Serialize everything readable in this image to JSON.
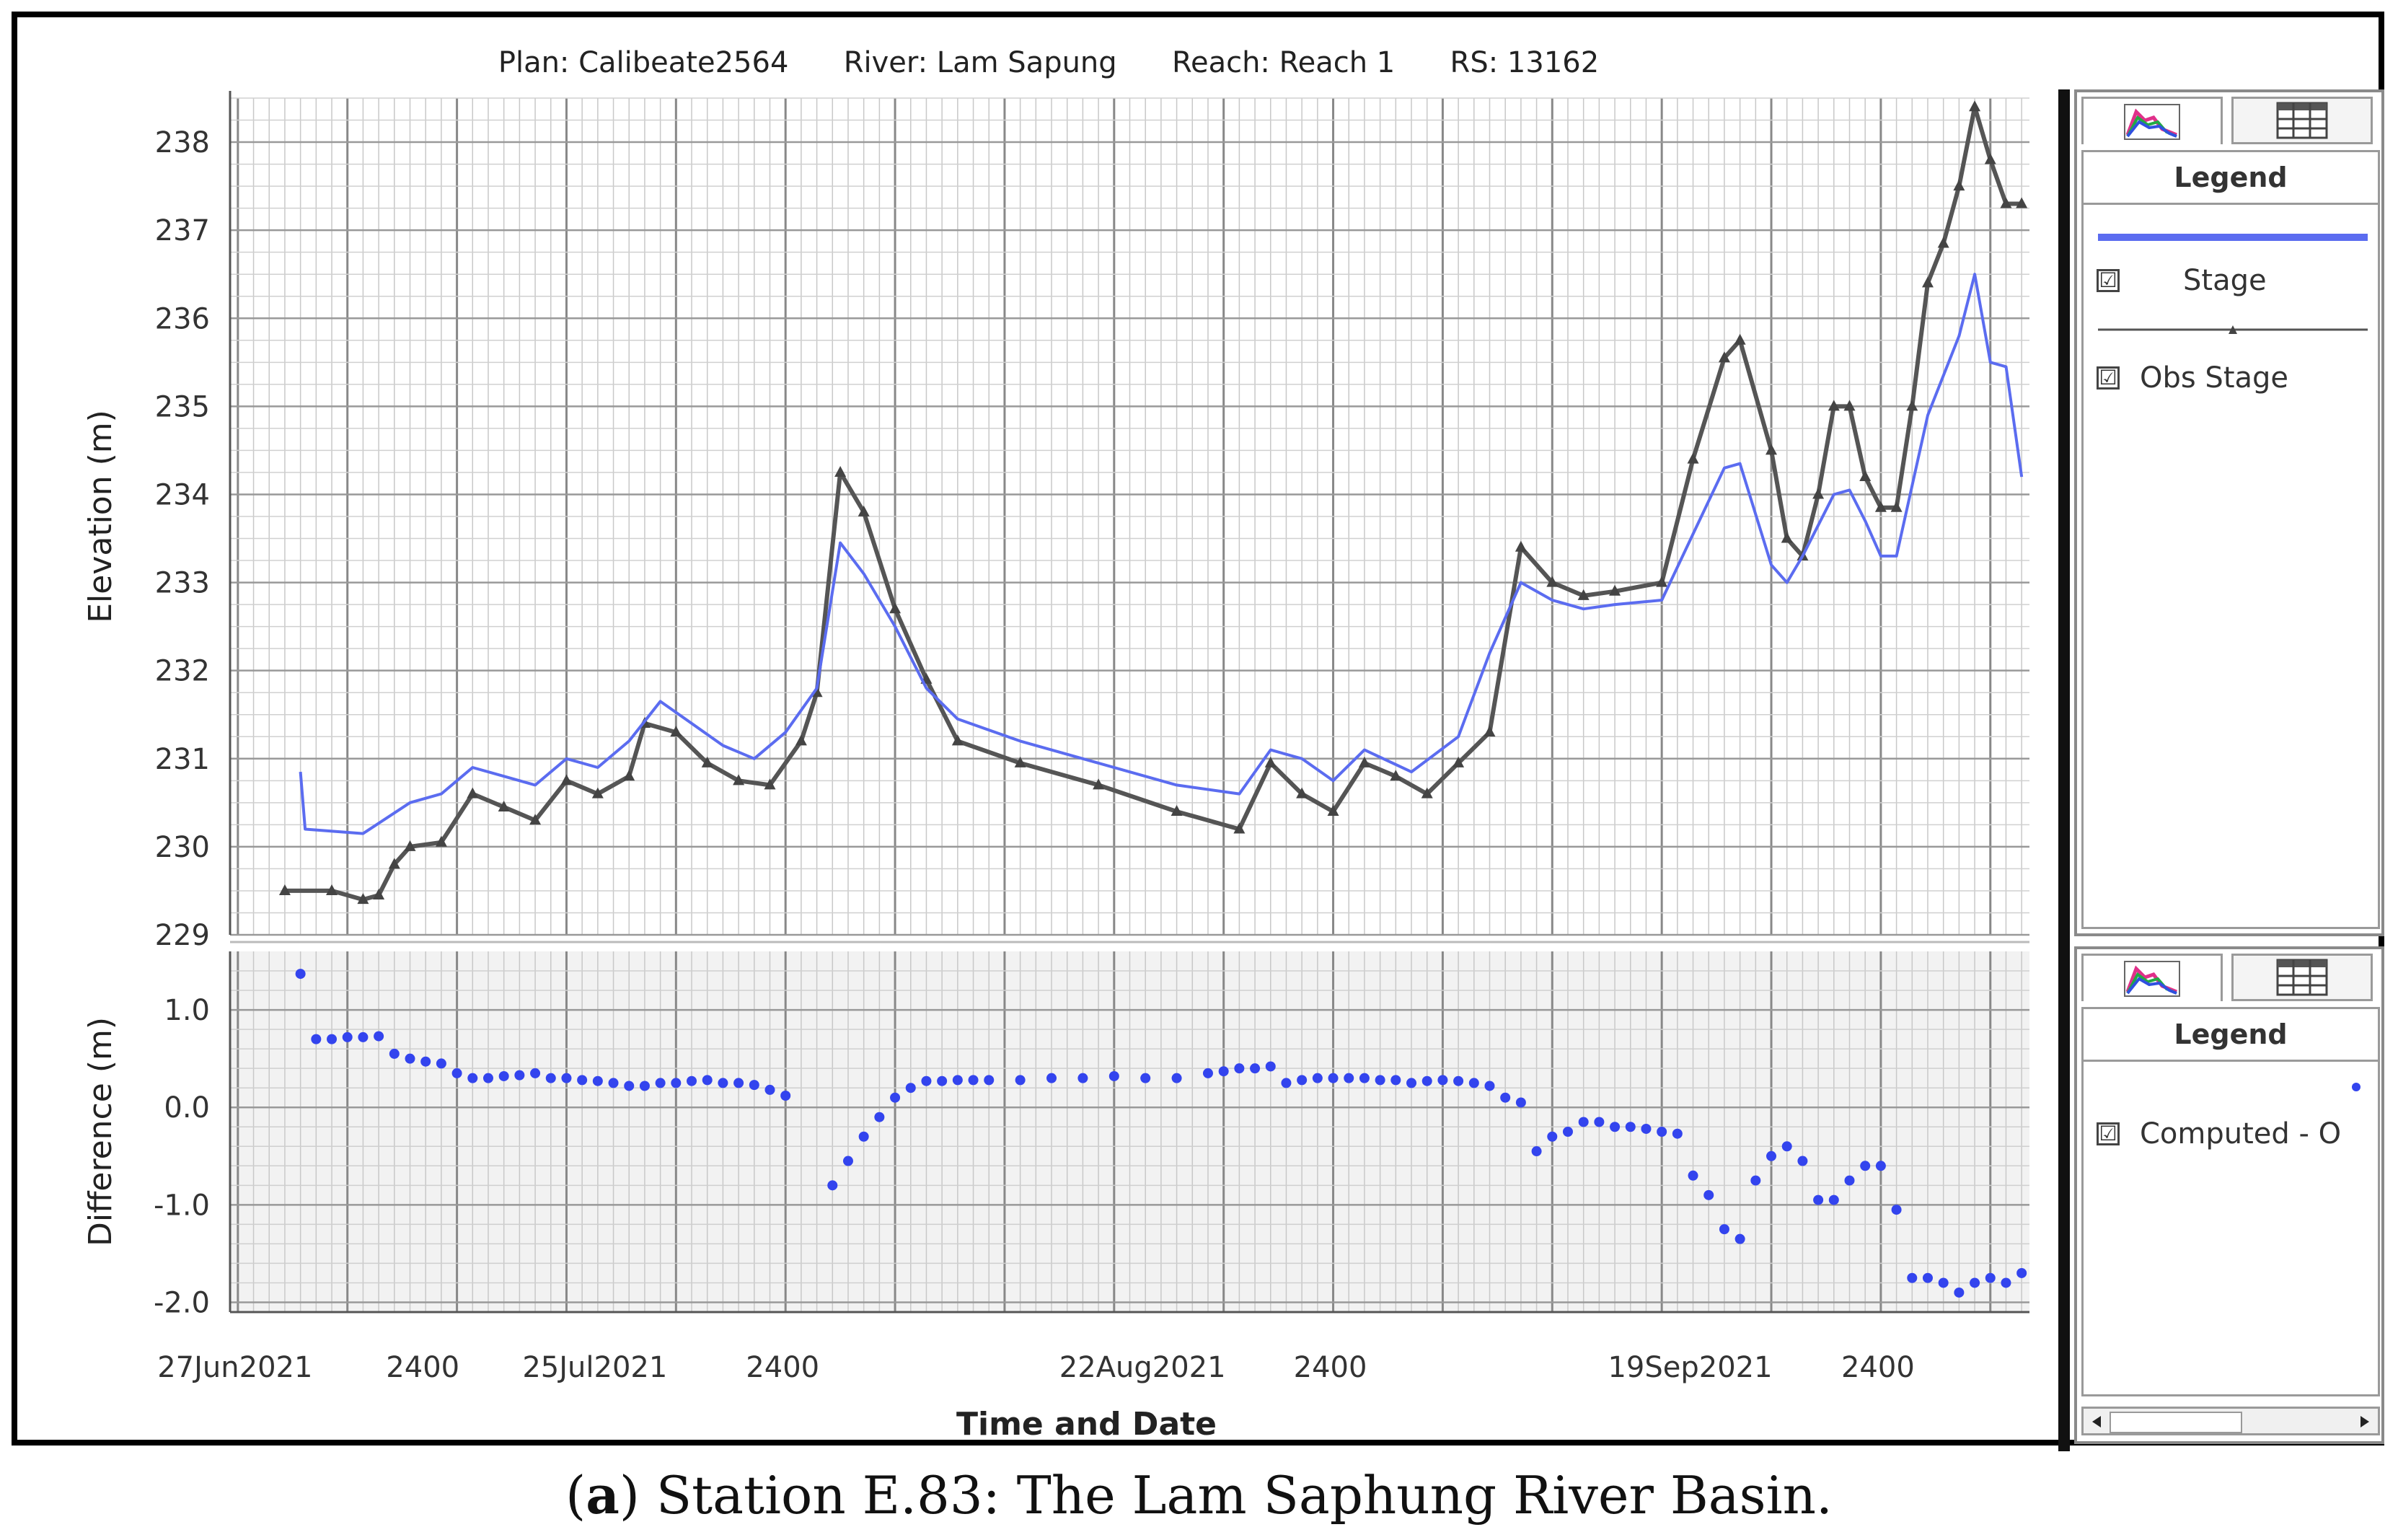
{
  "caption": {
    "prefix": "(",
    "label": "a",
    "text": ") Station E.83: The Lam Saphung River Basin."
  },
  "header": {
    "plan": "Plan: Calibeate2564",
    "river": "River: Lam Sapung",
    "reach": "Reach: Reach 1",
    "rs": "RS: 13162"
  },
  "legend_top": {
    "title": "Legend",
    "entries": [
      "Stage",
      "Obs Stage"
    ],
    "check_mark": "☑"
  },
  "legend_bottom": {
    "title": "Legend",
    "entries": [
      "Computed - O"
    ]
  },
  "icons": {
    "plot_tab": "plot-icon",
    "table_tab": "table-icon"
  },
  "colors": {
    "stage": "#5b6cf0",
    "obs": "#555555",
    "diff": "#3344ee"
  },
  "chart_data": [
    {
      "type": "line",
      "ylabel": "Elevation (m)",
      "ylim": [
        229,
        238.5
      ],
      "yticks": [
        229,
        230,
        231,
        232,
        233,
        234,
        235,
        236,
        237,
        238
      ],
      "x_unit": "days from 27Jun2021 2400",
      "xlim": [
        -0.5,
        114.5
      ],
      "grid": true,
      "series": [
        {
          "name": "Stage",
          "style": "line",
          "points": [
            [
              4,
              230.85
            ],
            [
              4.3,
              230.2
            ],
            [
              8,
              230.15
            ],
            [
              11,
              230.5
            ],
            [
              13,
              230.6
            ],
            [
              15,
              230.9
            ],
            [
              17,
              230.8
            ],
            [
              19,
              230.7
            ],
            [
              21,
              231.0
            ],
            [
              23,
              230.9
            ],
            [
              25,
              231.2
            ],
            [
              27,
              231.65
            ],
            [
              29,
              231.4
            ],
            [
              31,
              231.15
            ],
            [
              33,
              231.0
            ],
            [
              35,
              231.3
            ],
            [
              37,
              231.8
            ],
            [
              38.5,
              233.45
            ],
            [
              40,
              233.1
            ],
            [
              42,
              232.5
            ],
            [
              44,
              231.8
            ],
            [
              46,
              231.45
            ],
            [
              50,
              231.2
            ],
            [
              55,
              230.95
            ],
            [
              60,
              230.7
            ],
            [
              64,
              230.6
            ],
            [
              66,
              231.1
            ],
            [
              68,
              231.0
            ],
            [
              70,
              230.75
            ],
            [
              72,
              231.1
            ],
            [
              75,
              230.85
            ],
            [
              78,
              231.25
            ],
            [
              80,
              232.2
            ],
            [
              82,
              233.0
            ],
            [
              84,
              232.8
            ],
            [
              86,
              232.7
            ],
            [
              88,
              232.75
            ],
            [
              91,
              232.8
            ],
            [
              93,
              233.55
            ],
            [
              95,
              234.3
            ],
            [
              96,
              234.35
            ],
            [
              98,
              233.2
            ],
            [
              99,
              233.0
            ],
            [
              100,
              233.3
            ],
            [
              102,
              234.0
            ],
            [
              103,
              234.05
            ],
            [
              104,
              233.7
            ],
            [
              105,
              233.3
            ],
            [
              106,
              233.3
            ],
            [
              108,
              234.9
            ],
            [
              110,
              235.8
            ],
            [
              111,
              236.5
            ],
            [
              112,
              235.5
            ],
            [
              113,
              235.45
            ],
            [
              114,
              234.2
            ]
          ]
        },
        {
          "name": "Obs Stage",
          "style": "line-markers",
          "points": [
            [
              3,
              229.5
            ],
            [
              6,
              229.5
            ],
            [
              8,
              229.4
            ],
            [
              9,
              229.45
            ],
            [
              10,
              229.8
            ],
            [
              11,
              230.0
            ],
            [
              13,
              230.05
            ],
            [
              15,
              230.6
            ],
            [
              17,
              230.45
            ],
            [
              19,
              230.3
            ],
            [
              21,
              230.75
            ],
            [
              23,
              230.6
            ],
            [
              25,
              230.8
            ],
            [
              26,
              231.4
            ],
            [
              28,
              231.3
            ],
            [
              30,
              230.95
            ],
            [
              32,
              230.75
            ],
            [
              34,
              230.7
            ],
            [
              36,
              231.2
            ],
            [
              37,
              231.75
            ],
            [
              38.5,
              234.25
            ],
            [
              40,
              233.8
            ],
            [
              42,
              232.7
            ],
            [
              44,
              231.9
            ],
            [
              46,
              231.2
            ],
            [
              50,
              230.95
            ],
            [
              55,
              230.7
            ],
            [
              60,
              230.4
            ],
            [
              64,
              230.2
            ],
            [
              66,
              230.95
            ],
            [
              68,
              230.6
            ],
            [
              70,
              230.4
            ],
            [
              72,
              230.95
            ],
            [
              74,
              230.8
            ],
            [
              76,
              230.6
            ],
            [
              78,
              230.95
            ],
            [
              80,
              231.3
            ],
            [
              82,
              233.4
            ],
            [
              84,
              233.0
            ],
            [
              86,
              232.85
            ],
            [
              88,
              232.9
            ],
            [
              91,
              233.0
            ],
            [
              93,
              234.4
            ],
            [
              95,
              235.55
            ],
            [
              96,
              235.75
            ],
            [
              98,
              234.5
            ],
            [
              99,
              233.5
            ],
            [
              100,
              233.3
            ],
            [
              101,
              234.0
            ],
            [
              102,
              235.0
            ],
            [
              103,
              235.0
            ],
            [
              104,
              234.2
            ],
            [
              105,
              233.85
            ],
            [
              106,
              233.85
            ],
            [
              107,
              235.0
            ],
            [
              108,
              236.4
            ],
            [
              109,
              236.85
            ],
            [
              110,
              237.5
            ],
            [
              111,
              238.4
            ],
            [
              112,
              237.8
            ],
            [
              113,
              237.3
            ],
            [
              114,
              237.3
            ]
          ]
        }
      ]
    },
    {
      "type": "scatter",
      "ylabel": "Difference (m)",
      "xlabel": "Time and Date",
      "ylim": [
        -2.1,
        1.6
      ],
      "yticks": [
        1.0,
        0.0,
        -1.0,
        -2.0
      ],
      "ytick_labels": [
        "1.0",
        "0.0",
        "-1.0",
        "-2.0"
      ],
      "xticks": [
        0,
        12,
        23,
        35,
        47,
        58,
        70,
        81,
        93,
        105
      ],
      "xtick_labels": [
        "27Jun2021",
        "2400",
        "25Jul2021",
        "2400",
        "",
        "22Aug2021",
        "2400",
        "",
        "19Sep2021",
        "2400"
      ],
      "xlim": [
        -0.5,
        114.5
      ],
      "grid": true,
      "series": [
        {
          "name": "Computed - O",
          "points": [
            [
              4,
              1.37
            ],
            [
              5,
              0.7
            ],
            [
              6,
              0.7
            ],
            [
              7,
              0.72
            ],
            [
              8,
              0.72
            ],
            [
              9,
              0.73
            ],
            [
              10,
              0.55
            ],
            [
              11,
              0.5
            ],
            [
              12,
              0.47
            ],
            [
              13,
              0.45
            ],
            [
              14,
              0.35
            ],
            [
              15,
              0.3
            ],
            [
              16,
              0.3
            ],
            [
              17,
              0.32
            ],
            [
              18,
              0.33
            ],
            [
              19,
              0.35
            ],
            [
              20,
              0.3
            ],
            [
              21,
              0.3
            ],
            [
              22,
              0.28
            ],
            [
              23,
              0.27
            ],
            [
              24,
              0.25
            ],
            [
              25,
              0.22
            ],
            [
              26,
              0.22
            ],
            [
              27,
              0.25
            ],
            [
              28,
              0.25
            ],
            [
              29,
              0.27
            ],
            [
              30,
              0.28
            ],
            [
              31,
              0.25
            ],
            [
              32,
              0.25
            ],
            [
              33,
              0.23
            ],
            [
              34,
              0.18
            ],
            [
              35,
              0.12
            ],
            [
              38,
              -0.8
            ],
            [
              39,
              -0.55
            ],
            [
              40,
              -0.3
            ],
            [
              41,
              -0.1
            ],
            [
              42,
              0.1
            ],
            [
              43,
              0.2
            ],
            [
              44,
              0.27
            ],
            [
              45,
              0.27
            ],
            [
              46,
              0.28
            ],
            [
              47,
              0.28
            ],
            [
              48,
              0.28
            ],
            [
              50,
              0.28
            ],
            [
              52,
              0.3
            ],
            [
              54,
              0.3
            ],
            [
              56,
              0.32
            ],
            [
              58,
              0.3
            ],
            [
              60,
              0.3
            ],
            [
              62,
              0.35
            ],
            [
              63,
              0.37
            ],
            [
              64,
              0.4
            ],
            [
              65,
              0.4
            ],
            [
              66,
              0.42
            ],
            [
              67,
              0.25
            ],
            [
              68,
              0.28
            ],
            [
              69,
              0.3
            ],
            [
              70,
              0.3
            ],
            [
              71,
              0.3
            ],
            [
              72,
              0.3
            ],
            [
              73,
              0.28
            ],
            [
              74,
              0.28
            ],
            [
              75,
              0.25
            ],
            [
              76,
              0.27
            ],
            [
              77,
              0.28
            ],
            [
              78,
              0.27
            ],
            [
              79,
              0.25
            ],
            [
              80,
              0.22
            ],
            [
              81,
              0.1
            ],
            [
              82,
              0.05
            ],
            [
              83,
              -0.45
            ],
            [
              84,
              -0.3
            ],
            [
              85,
              -0.25
            ],
            [
              86,
              -0.15
            ],
            [
              87,
              -0.15
            ],
            [
              88,
              -0.2
            ],
            [
              89,
              -0.2
            ],
            [
              90,
              -0.22
            ],
            [
              91,
              -0.25
            ],
            [
              92,
              -0.27
            ],
            [
              93,
              -0.7
            ],
            [
              94,
              -0.9
            ],
            [
              95,
              -1.25
            ],
            [
              96,
              -1.35
            ],
            [
              97,
              -0.75
            ],
            [
              98,
              -0.5
            ],
            [
              99,
              -0.4
            ],
            [
              100,
              -0.55
            ],
            [
              101,
              -0.95
            ],
            [
              102,
              -0.95
            ],
            [
              103,
              -0.75
            ],
            [
              104,
              -0.6
            ],
            [
              105,
              -0.6
            ],
            [
              106,
              -1.05
            ],
            [
              107,
              -1.75
            ],
            [
              108,
              -1.75
            ],
            [
              109,
              -1.8
            ],
            [
              110,
              -1.9
            ],
            [
              111,
              -1.8
            ],
            [
              112,
              -1.75
            ],
            [
              113,
              -1.8
            ],
            [
              114,
              -1.7
            ]
          ]
        }
      ]
    }
  ]
}
